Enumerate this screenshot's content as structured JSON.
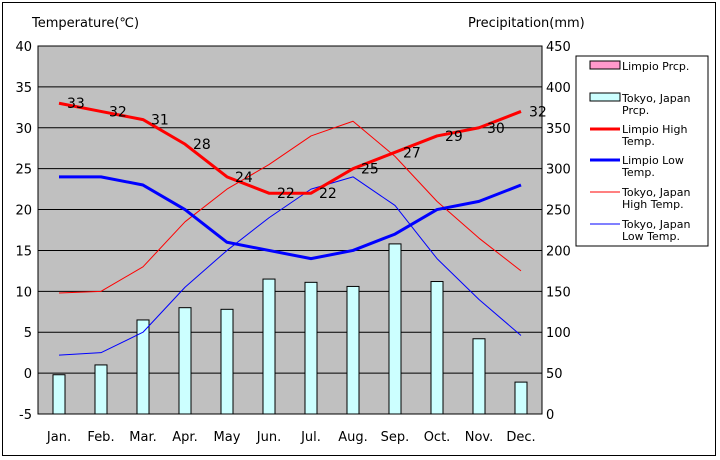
{
  "chart_data": {
    "type": "bar+line",
    "left_axis_title": "Temperature(℃)",
    "right_axis_title": "Precipitation(mm)",
    "categories": [
      "Jan.",
      "Feb.",
      "Mar.",
      "Apr.",
      "May",
      "Jun.",
      "Jul.",
      "Aug.",
      "Sep.",
      "Oct.",
      "Nov.",
      "Dec."
    ],
    "left_ylim": [
      -5,
      40
    ],
    "left_ticks": [
      "40",
      "35",
      "30",
      "25",
      "20",
      "15",
      "10",
      "5",
      "0",
      "-5"
    ],
    "right_ylim": [
      0,
      450
    ],
    "right_ticks": [
      "450",
      "400",
      "350",
      "300",
      "250",
      "200",
      "150",
      "100",
      "50",
      "0"
    ],
    "series": [
      {
        "name": "Limpio Prcp.",
        "kind": "bar",
        "axis": "right",
        "color": "#ff99cc",
        "values": [
          null,
          null,
          null,
          null,
          null,
          null,
          null,
          null,
          null,
          null,
          null,
          null
        ]
      },
      {
        "name": "Tokyo, Japan Prcp.",
        "kind": "bar",
        "axis": "right",
        "color": "#ccffff",
        "values": [
          48,
          60,
          115,
          130,
          128,
          165,
          161,
          156,
          208,
          162,
          92,
          39
        ]
      },
      {
        "name": "Limpio High Temp.",
        "kind": "line",
        "axis": "left",
        "color": "#ff0000",
        "width": 3,
        "values": [
          33,
          32,
          31,
          28,
          24,
          22,
          22,
          25,
          27,
          29,
          30,
          32
        ],
        "labels": [
          "33",
          "32",
          "31",
          "28",
          "24",
          "22",
          "22",
          "25",
          "27",
          "29",
          "30",
          "32"
        ]
      },
      {
        "name": "Limpio Low Temp.",
        "kind": "line",
        "axis": "left",
        "color": "#0000ff",
        "width": 3,
        "values": [
          24,
          24,
          23,
          20,
          16,
          15,
          14,
          15,
          17,
          20,
          21,
          23
        ]
      },
      {
        "name": "Tokyo, Japan High Temp.",
        "kind": "line",
        "axis": "left",
        "color": "#ff0000",
        "width": 1,
        "values": [
          9.8,
          10,
          13,
          18.5,
          22.5,
          25.5,
          29,
          30.8,
          26.5,
          21,
          16.5,
          12.5
        ]
      },
      {
        "name": "Tokyo, Japan Low Temp.",
        "kind": "line",
        "axis": "left",
        "color": "#0000ff",
        "width": 1,
        "values": [
          2.2,
          2.5,
          5,
          10.5,
          15,
          19,
          22.5,
          24,
          20.5,
          14,
          9,
          4.6
        ]
      }
    ],
    "legend": [
      {
        "label": "Limpio Prcp.",
        "type": "bar",
        "color": "#ff99cc"
      },
      {
        "label": "Tokyo, Japan Prcp.",
        "type": "bar",
        "color": "#ccffff"
      },
      {
        "label": "Limpio High Temp.",
        "type": "line",
        "color": "#ff0000",
        "width": 3
      },
      {
        "label": "Limpio Low Temp.",
        "type": "line",
        "color": "#0000ff",
        "width": 3
      },
      {
        "label": "Tokyo, Japan High Temp.",
        "type": "line",
        "color": "#ff0000",
        "width": 1
      },
      {
        "label": "Tokyo, Japan Low Temp.",
        "type": "line",
        "color": "#0000ff",
        "width": 1
      }
    ],
    "legend_position": "right",
    "plot_background": "#c0c0c0",
    "grid": "horizontal"
  }
}
